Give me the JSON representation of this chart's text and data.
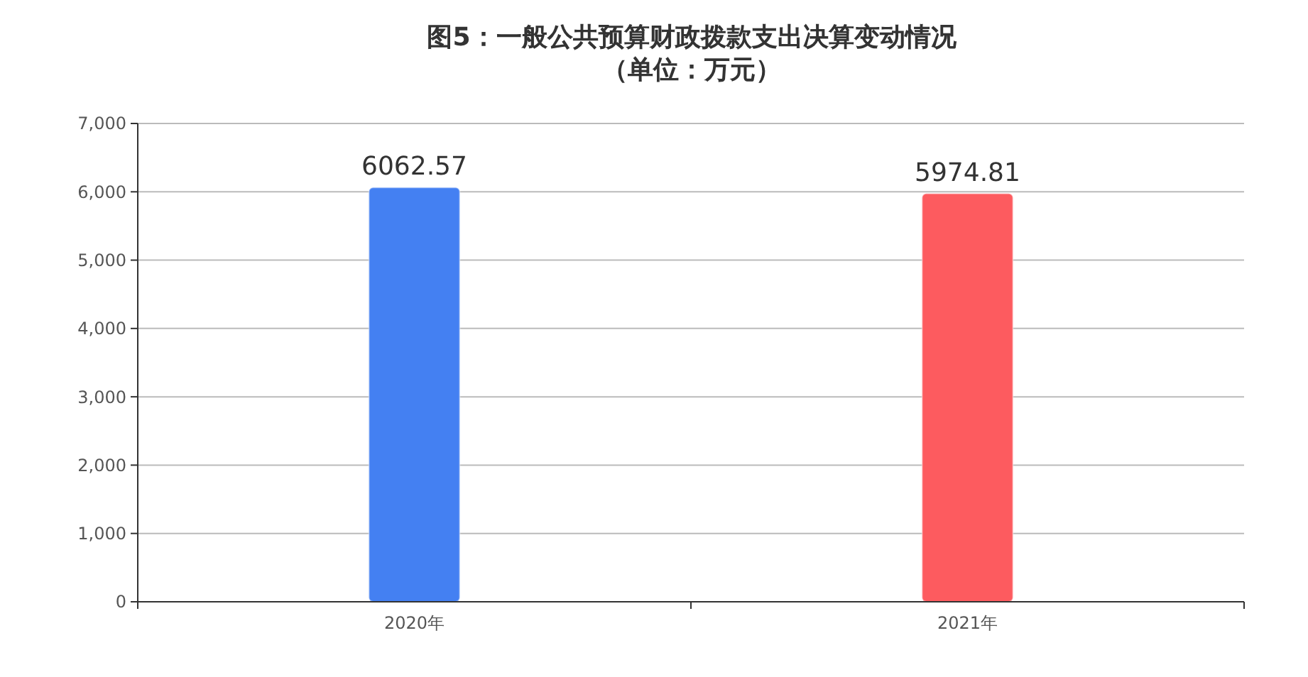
{
  "chart_data": {
    "type": "bar",
    "title": "图5：一般公共预算财政拨款支出决算变动情况",
    "subtitle": "（单位：万元）",
    "categories": [
      "2020年",
      "2021年"
    ],
    "values": [
      6062.57,
      5974.81
    ],
    "colors": [
      "#4480f2",
      "#fd5b5f"
    ],
    "ylim": [
      0,
      7000
    ],
    "yticks": [
      {
        "value": 0,
        "label": "0"
      },
      {
        "value": 1000,
        "label": "1,000"
      },
      {
        "value": 2000,
        "label": "2,000"
      },
      {
        "value": 3000,
        "label": "3,000"
      },
      {
        "value": 4000,
        "label": "4,000"
      },
      {
        "value": 5000,
        "label": "5,000"
      },
      {
        "value": 6000,
        "label": "6,000"
      },
      {
        "value": 7000,
        "label": "7,000"
      }
    ],
    "grid": "y",
    "data_labels": true
  }
}
